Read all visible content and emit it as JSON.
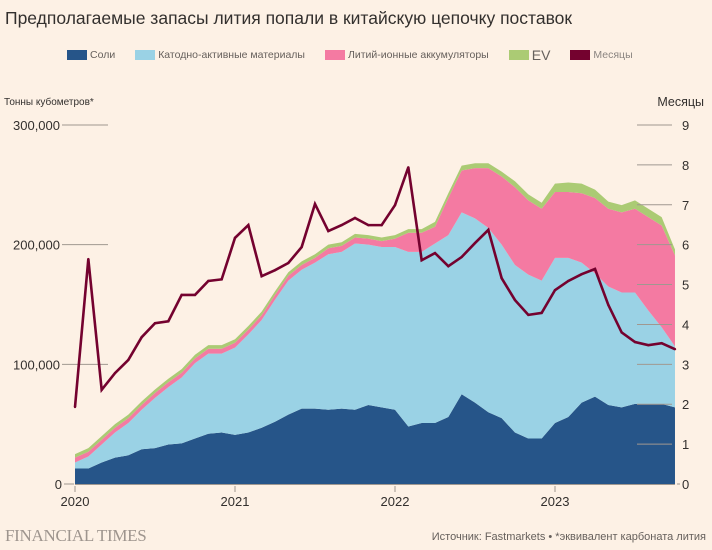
{
  "title": "Предполагаемые запасы лития попали в китайскую цепочку поставок",
  "legend": [
    {
      "label": "Соли",
      "color": "#265589"
    },
    {
      "label": "Катодно-активные материалы",
      "color": "#9ad2e5"
    },
    {
      "label": "Литий-ионные аккумуляторы",
      "color": "#f47aa2"
    },
    {
      "label": "EV",
      "color": "#abcb74"
    },
    {
      "label": "Месяцы",
      "color": "#74022f"
    }
  ],
  "footer": {
    "brand": "FINANCIAL TIMES",
    "source": "Источник: Fastmarkets • *эквивалент карбоната лития"
  },
  "chart_data": {
    "type": "area",
    "title": "Предполагаемые запасы лития попали в китайскую цепочку поставок",
    "ylabel": "Тонны кубометров*",
    "y2label": "Месяцы",
    "ylim": [
      0,
      300000
    ],
    "y2lim": [
      0,
      9
    ],
    "yticks": [
      "0",
      "100,000",
      "200,000",
      "300,000"
    ],
    "y2ticks": [
      "0",
      "1",
      "2",
      "3",
      "4",
      "5",
      "6",
      "7",
      "8",
      "9"
    ],
    "xticks": [
      "2020",
      "2021",
      "2022",
      "2023"
    ],
    "x_start": "2020-01",
    "x_end": "2023-10",
    "frequency": "monthly",
    "series": [
      {
        "name": "Соли",
        "type": "stacked-area",
        "values": [
          13000,
          13000,
          18000,
          22000,
          24000,
          29000,
          30000,
          33000,
          34000,
          38000,
          42000,
          43000,
          41000,
          43000,
          47000,
          52000,
          58000,
          63000,
          63000,
          62000,
          63000,
          62000,
          66000,
          64000,
          62000,
          48000,
          51000,
          51000,
          56000,
          75000,
          68000,
          60000,
          55000,
          43000,
          38000,
          38000,
          51000,
          56000,
          68000,
          73000,
          66000,
          64000,
          67000,
          67000,
          67000,
          64000
        ]
      },
      {
        "name": "Катодно-активные материалы",
        "type": "stacked-area",
        "values": [
          5000,
          10000,
          15000,
          21000,
          27000,
          33000,
          42000,
          48000,
          55000,
          63000,
          67000,
          66000,
          73000,
          82000,
          90000,
          102000,
          112000,
          116000,
          122000,
          130000,
          131000,
          139000,
          134000,
          134000,
          136000,
          146000,
          143000,
          150000,
          152000,
          152000,
          154000,
          154000,
          145000,
          140000,
          137000,
          132000,
          138000,
          133000,
          117000,
          103000,
          99000,
          96000,
          93000,
          78000,
          64000,
          51000
        ]
      },
      {
        "name": "Литий-ионные аккумуляторы",
        "type": "stacked-area",
        "values": [
          4000,
          4000,
          4000,
          4000,
          4000,
          4000,
          4000,
          4000,
          4000,
          4000,
          4000,
          4000,
          4000,
          4000,
          4000,
          4000,
          4000,
          4000,
          4000,
          5000,
          5000,
          5000,
          5000,
          5000,
          7000,
          16000,
          16000,
          14000,
          31000,
          35000,
          42000,
          50000,
          57000,
          65000,
          62000,
          60000,
          55000,
          55000,
          58000,
          63000,
          65000,
          67000,
          70000,
          78000,
          85000,
          76000
        ]
      },
      {
        "name": "EV",
        "type": "stacked-area",
        "values": [
          3000,
          3000,
          3000,
          3000,
          3000,
          3000,
          3000,
          3000,
          3000,
          3000,
          3000,
          3000,
          3000,
          3000,
          3000,
          3000,
          3000,
          3000,
          3000,
          3000,
          3000,
          3000,
          3000,
          3000,
          3000,
          3000,
          3000,
          4000,
          4000,
          4000,
          4000,
          4000,
          4000,
          5000,
          5000,
          5000,
          7000,
          8000,
          8000,
          7000,
          6000,
          6000,
          7000,
          7000,
          7000,
          5000
        ]
      },
      {
        "name": "Месяцы",
        "type": "line",
        "axis": "right",
        "values": [
          1.93,
          5.64,
          2.36,
          2.78,
          3.11,
          3.68,
          4.03,
          4.08,
          4.74,
          4.74,
          5.09,
          5.13,
          6.17,
          6.49,
          5.21,
          5.36,
          5.54,
          5.94,
          7.02,
          6.34,
          6.49,
          6.67,
          6.49,
          6.49,
          6.99,
          7.94,
          5.61,
          5.79,
          5.46,
          5.69,
          6.04,
          6.37,
          5.16,
          4.61,
          4.24,
          4.29,
          4.86,
          5.09,
          5.26,
          5.39,
          4.49,
          3.8,
          3.56,
          3.48,
          3.53,
          3.38
        ]
      }
    ]
  }
}
